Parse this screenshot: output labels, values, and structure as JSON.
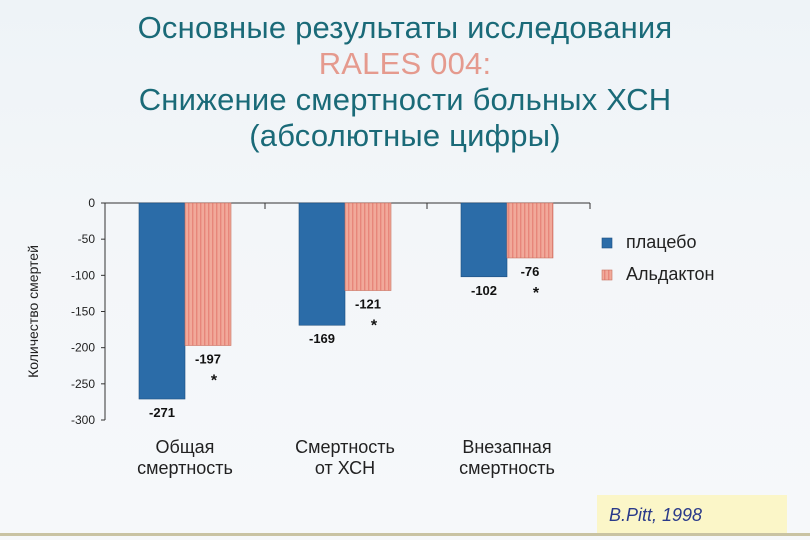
{
  "slide": {
    "title_lines": [
      "Основные результаты исследования",
      "RALES 004:",
      "Снижение смертности больных ХСН",
      "(абсолютные цифры)"
    ],
    "citation": "B.Pitt, 1998"
  },
  "colors": {
    "title": "#1a6a78",
    "accent": "#e59a8e",
    "placebo": "#2b6ca8",
    "aldactone": "#f1a99a",
    "aldactone_stripe": "#e7867a"
  },
  "chart_data": {
    "type": "bar",
    "ylabel": "Количество смертей",
    "ylim": [
      -300,
      0
    ],
    "yticks": [
      0,
      -50,
      -100,
      -150,
      -200,
      -250,
      -300
    ],
    "categories": [
      [
        "Общая",
        "смертность"
      ],
      [
        "Смертность",
        "от ХСН"
      ],
      [
        "Внезапная",
        "смертность"
      ]
    ],
    "series": [
      {
        "name": "плацебо",
        "values": [
          -271,
          -169,
          -102
        ],
        "labels": [
          "-271",
          "-169",
          "-102"
        ],
        "marks": [
          "",
          "",
          ""
        ]
      },
      {
        "name": "Альдактон",
        "values": [
          -197,
          -121,
          -76
        ],
        "labels": [
          "-197",
          "-121",
          "-76"
        ],
        "marks": [
          "*",
          "*",
          "*"
        ]
      }
    ],
    "legend_position": "right",
    "grid": false
  }
}
